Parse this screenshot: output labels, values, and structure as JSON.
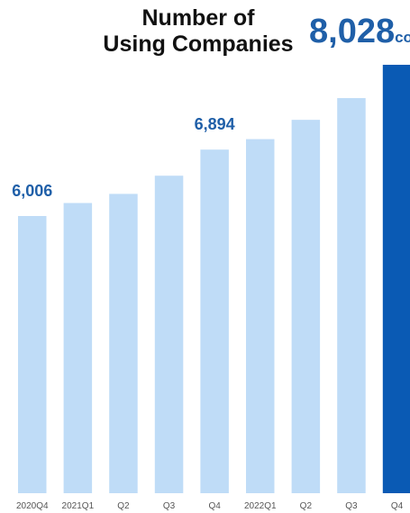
{
  "chart_data": {
    "type": "bar",
    "title_lines": [
      "Number of",
      "Using Companies"
    ],
    "highlight": {
      "value": "8,028",
      "unit": "co"
    },
    "categories": [
      "2020Q4",
      "2021Q1",
      "Q2",
      "Q3",
      "Q4",
      "2022Q1",
      "Q2",
      "Q3",
      "Q4"
    ],
    "values": [
      6006,
      6180,
      6302,
      6545,
      6894,
      7034,
      7292,
      7583,
      8028
    ],
    "data_labels": {
      "0": "6,006",
      "4": "6,894"
    },
    "emphasis_index": 8,
    "ylim": [
      2300,
      8100
    ],
    "grid": false,
    "colors": {
      "bar": "#bfdcf7",
      "bar_emphasis": "#0a5ab4",
      "label": "#1f5fa8"
    }
  }
}
